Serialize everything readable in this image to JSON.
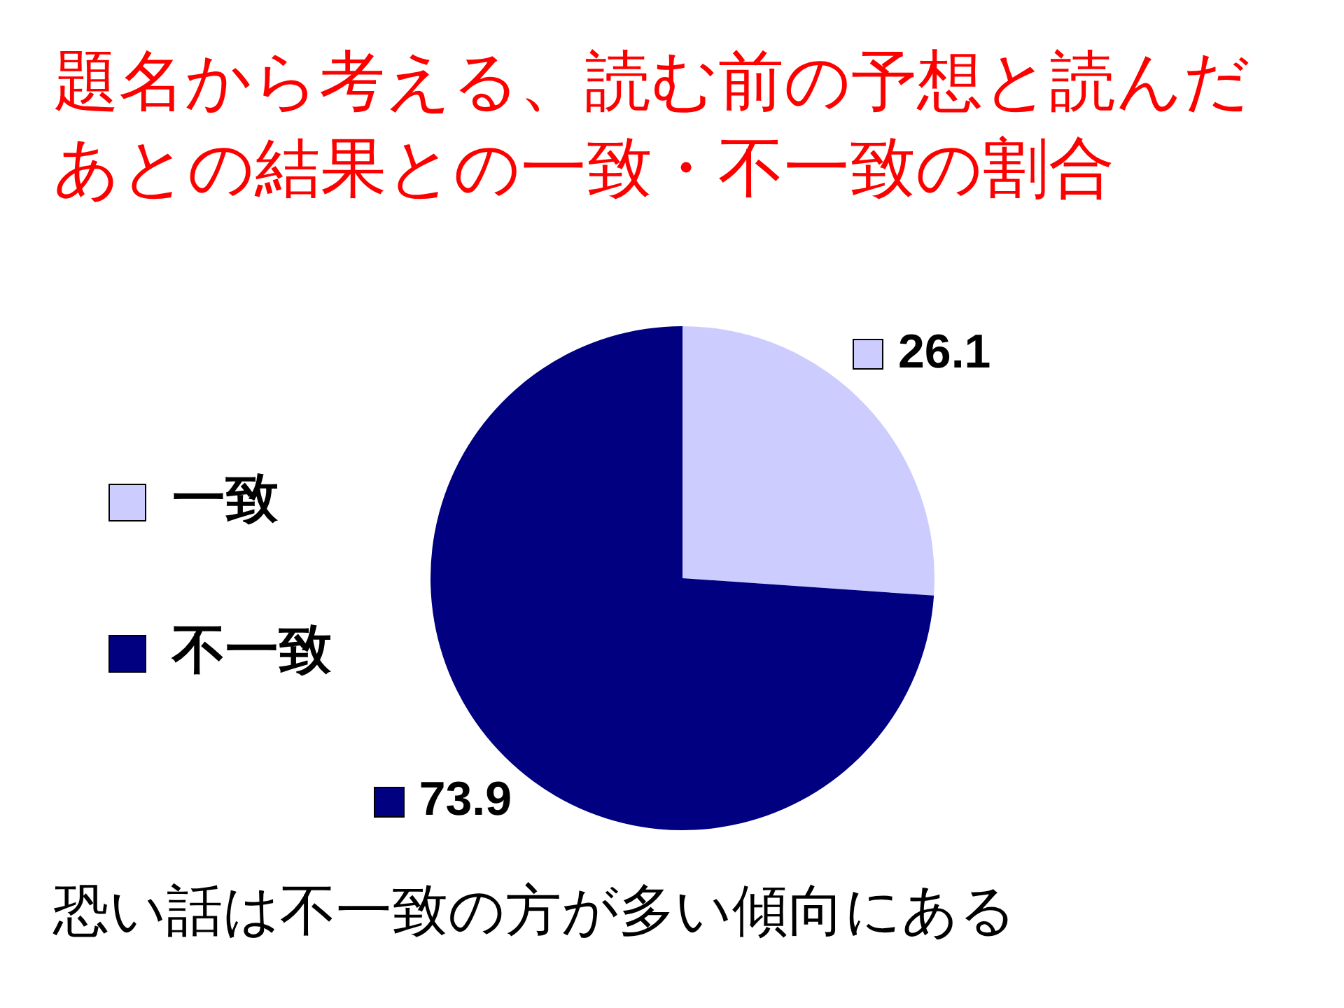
{
  "chart_data": {
    "type": "pie",
    "title": "題名から考える、読む前の予想と読んだあとの結果との一致・不一致の割合",
    "categories": [
      "一致",
      "不一致"
    ],
    "values": [
      26.1,
      73.9
    ],
    "colors": [
      "#ccccff",
      "#000080"
    ],
    "legend": "left",
    "data_labels": true,
    "annotations": [
      "恐い話は不一致の方が多い傾向にある"
    ]
  }
}
